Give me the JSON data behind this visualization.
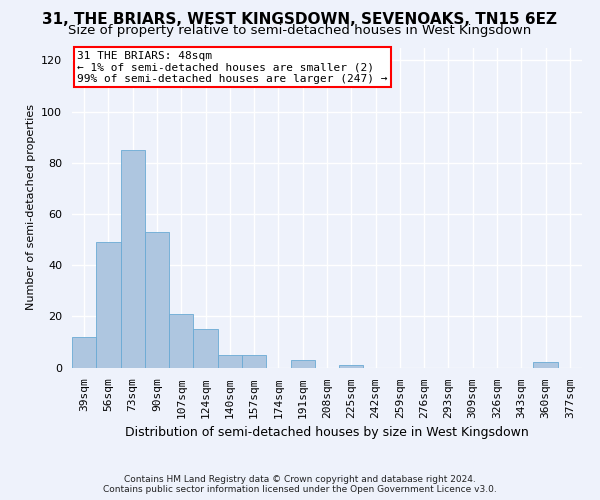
{
  "title": "31, THE BRIARS, WEST KINGSDOWN, SEVENOAKS, TN15 6EZ",
  "subtitle": "Size of property relative to semi-detached houses in West Kingsdown",
  "xlabel": "Distribution of semi-detached houses by size in West Kingsdown",
  "ylabel": "Number of semi-detached properties",
  "footer_line1": "Contains HM Land Registry data © Crown copyright and database right 2024.",
  "footer_line2": "Contains public sector information licensed under the Open Government Licence v3.0.",
  "categories": [
    "39sqm",
    "56sqm",
    "73sqm",
    "90sqm",
    "107sqm",
    "124sqm",
    "140sqm",
    "157sqm",
    "174sqm",
    "191sqm",
    "208sqm",
    "225sqm",
    "242sqm",
    "259sqm",
    "276sqm",
    "293sqm",
    "309sqm",
    "326sqm",
    "343sqm",
    "360sqm",
    "377sqm"
  ],
  "values": [
    12,
    49,
    85,
    53,
    21,
    15,
    5,
    5,
    0,
    3,
    0,
    1,
    0,
    0,
    0,
    0,
    0,
    0,
    0,
    2,
    0
  ],
  "bar_color": "#aec6e0",
  "bar_edge_color": "#6aaad4",
  "annotation_text": "31 THE BRIARS: 48sqm\n← 1% of semi-detached houses are smaller (2)\n99% of semi-detached houses are larger (247) →",
  "annotation_box_color": "white",
  "annotation_box_edge_color": "red",
  "ylim": [
    0,
    125
  ],
  "yticks": [
    0,
    20,
    40,
    60,
    80,
    100,
    120
  ],
  "background_color": "#eef2fb",
  "plot_bg_color": "#eef2fb",
  "grid_color": "white",
  "title_fontsize": 11,
  "subtitle_fontsize": 9.5,
  "ylabel_fontsize": 8,
  "xlabel_fontsize": 9,
  "tick_fontsize": 8,
  "annotation_fontsize": 8,
  "footer_fontsize": 6.5
}
